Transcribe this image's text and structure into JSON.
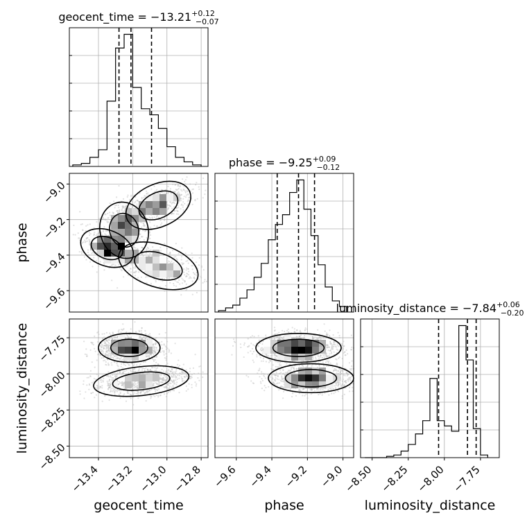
{
  "chart_data": {
    "type": "corner",
    "parameters": [
      {
        "key": "geocent_time",
        "label": "geocent_time",
        "range": [
          -13.57,
          -12.76
        ],
        "ticks": [
          -13.4,
          -13.2,
          -13.0,
          -12.8
        ],
        "tick_labels": [
          "−13.4",
          "−13.2",
          "−13.0",
          "−12.8"
        ],
        "median": -13.21,
        "plus": 0.12,
        "minus": 0.07,
        "title": {
          "main": "geocent_time = −13.21",
          "sup": "+0.12",
          "sub": "−0.07"
        },
        "quantiles": [
          -13.28,
          -13.21,
          -13.09
        ]
      },
      {
        "key": "phase",
        "label": "phase",
        "range": [
          -9.72,
          -8.94
        ],
        "ticks": [
          -9.6,
          -9.4,
          -9.2,
          -9.0
        ],
        "tick_labels": [
          "−9.6",
          "−9.4",
          "−9.2",
          "−9.0"
        ],
        "median": -9.25,
        "plus": 0.09,
        "minus": 0.12,
        "title": {
          "main": "phase = −9.25",
          "sup": "+0.09",
          "sub": "−0.12"
        },
        "quantiles": [
          -9.37,
          -9.25,
          -9.16
        ]
      },
      {
        "key": "luminosity_distance",
        "label": "luminosity_distance",
        "range": [
          -8.58,
          -7.62
        ],
        "ticks": [
          -8.5,
          -8.25,
          -8.0,
          -7.75
        ],
        "tick_labels": [
          "−8.50",
          "−8.25",
          "−8.00",
          "−7.75"
        ],
        "median": -7.84,
        "plus": 0.06,
        "minus": 0.2,
        "title": {
          "main": "luminosity_distance = −7.84",
          "sup": "+0.06",
          "sub": "−0.20"
        },
        "quantiles": [
          -8.04,
          -7.84,
          -7.78
        ]
      }
    ],
    "histograms": {
      "geocent_time": {
        "bin_edges": [
          -13.55,
          -13.5,
          -13.45,
          -13.4,
          -13.35,
          -13.3,
          -13.25,
          -13.2,
          -13.15,
          -13.1,
          -13.05,
          -13.0,
          -12.95,
          -12.9,
          -12.85,
          -12.8
        ],
        "counts": [
          1,
          2,
          6,
          11,
          43,
          78,
          87,
          52,
          38,
          34,
          25,
          13,
          6,
          3,
          1
        ]
      },
      "phase": {
        "bin_edges": [
          -9.7,
          -9.66,
          -9.62,
          -9.58,
          -9.54,
          -9.5,
          -9.46,
          -9.42,
          -9.38,
          -9.34,
          -9.3,
          -9.26,
          -9.22,
          -9.18,
          -9.14,
          -9.1,
          -9.06,
          -9.02,
          -8.98
        ],
        "counts": [
          1,
          3,
          5,
          10,
          16,
          25,
          35,
          52,
          63,
          70,
          86,
          95,
          74,
          55,
          34,
          18,
          8,
          4
        ]
      },
      "luminosity_distance": {
        "bin_edges": [
          -8.55,
          -8.5,
          -8.45,
          -8.4,
          -8.35,
          -8.3,
          -8.25,
          -8.2,
          -8.15,
          -8.1,
          -8.05,
          -8.0,
          -7.95,
          -7.9,
          -7.85,
          -7.8,
          -7.75,
          -7.7
        ],
        "counts": [
          0,
          0,
          0,
          1,
          2,
          5,
          10,
          18,
          28,
          60,
          28,
          24,
          20,
          100,
          74,
          22,
          2
        ]
      }
    },
    "joint": [
      {
        "x": "geocent_time",
        "y": "phase",
        "clusters": [
          {
            "center": [
              -13.25,
              -9.26
            ],
            "spread": [
              0.07,
              0.08
            ],
            "rho": 0.2,
            "weight": 0.3
          },
          {
            "center": [
              -13.05,
              -9.12
            ],
            "spread": [
              0.1,
              0.06
            ],
            "rho": 0.6,
            "weight": 0.25
          },
          {
            "center": [
              -13.05,
              -9.46
            ],
            "spread": [
              0.12,
              0.06
            ],
            "rho": -0.5,
            "weight": 0.25
          },
          {
            "center": [
              -13.35,
              -9.36
            ],
            "spread": [
              0.08,
              0.05
            ],
            "rho": -0.5,
            "weight": 0.2
          }
        ]
      },
      {
        "x": "geocent_time",
        "y": "luminosity_distance",
        "clusters": [
          {
            "center": [
              -13.22,
              -7.82
            ],
            "spread": [
              0.09,
              0.05
            ],
            "rho": 0.0,
            "weight": 0.55
          },
          {
            "center": [
              -13.15,
              -8.05
            ],
            "spread": [
              0.14,
              0.05
            ],
            "rho": 0.3,
            "weight": 0.45
          }
        ]
      },
      {
        "x": "phase",
        "y": "luminosity_distance",
        "clusters": [
          {
            "center": [
              -9.25,
              -7.82
            ],
            "spread": [
              0.12,
              0.05
            ],
            "rho": 0.0,
            "weight": 0.55
          },
          {
            "center": [
              -9.18,
              -8.03
            ],
            "spread": [
              0.12,
              0.05
            ],
            "rho": 0.0,
            "weight": 0.45
          }
        ]
      }
    ],
    "grid": true,
    "colors": {
      "hist": "#000000",
      "contour": "#000000",
      "points": "#bbbbbb",
      "grid": "#b0b0b0"
    }
  }
}
